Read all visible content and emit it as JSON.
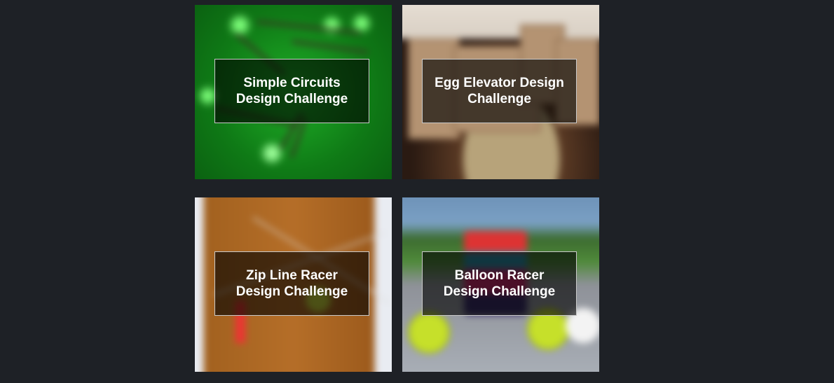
{
  "cards": [
    {
      "title_line1": "Simple Circuits",
      "title_line2": "Design Challenge"
    },
    {
      "title_line1": "Egg Elevator Design",
      "title_line2": "Challenge"
    },
    {
      "title_line1": "Zip Line Racer",
      "title_line2": "Design Challenge"
    },
    {
      "title_line1": "Balloon Racer",
      "title_line2": "Design Challenge"
    }
  ],
  "colors": {
    "page_background": "#1e2126",
    "label_text": "#ffffff",
    "label_border": "#c9c9c9"
  }
}
